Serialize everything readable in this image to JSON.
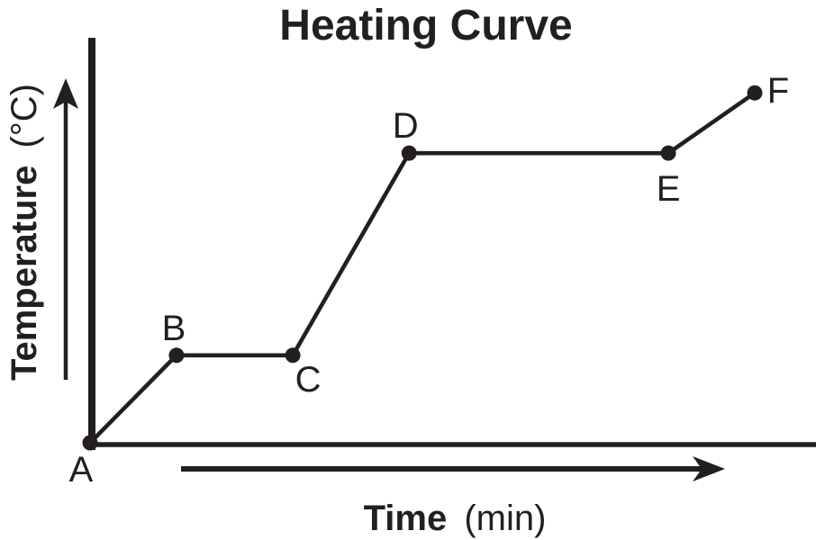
{
  "chart_data": {
    "type": "line",
    "title": "Heating Curve",
    "xlabel": "Time",
    "xlabel_unit": "(min)",
    "ylabel": "Temperature",
    "ylabel_unit": "(°C)",
    "grid": false,
    "legend": false,
    "axis_ticks_labeled": false,
    "xlim": [
      0,
      10.9
    ],
    "ylim": [
      0,
      10
    ],
    "points": [
      {
        "label": "A",
        "time": 0,
        "temp": 0
      },
      {
        "label": "B",
        "time": 1.3,
        "temp": 2.25
      },
      {
        "label": "C",
        "time": 3.05,
        "temp": 2.25
      },
      {
        "label": "D",
        "time": 4.8,
        "temp": 7.45
      },
      {
        "label": "E",
        "time": 8.7,
        "temp": 7.45
      },
      {
        "label": "F",
        "time": 10,
        "temp": 9
      }
    ]
  },
  "colors": {
    "ink": "#231f20",
    "background": "#ffffff"
  }
}
